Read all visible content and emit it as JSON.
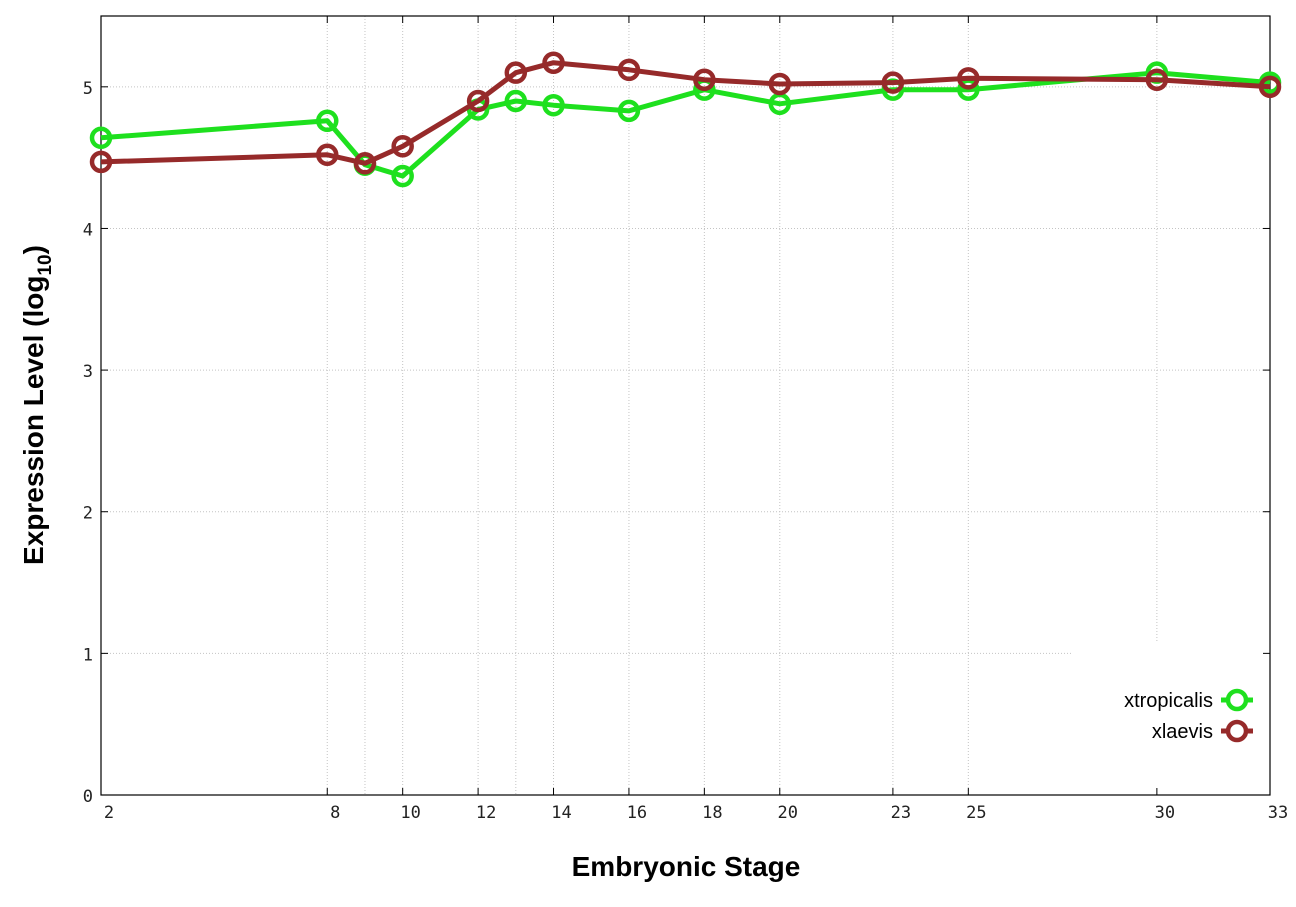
{
  "chart_data": {
    "type": "line",
    "xlabel": "Embryonic Stage",
    "ylabel": "Expression Level (log",
    "ylabel_sub": "10",
    "ylabel_close": ")",
    "xlim": [
      2,
      33
    ],
    "ylim": [
      0,
      5.5
    ],
    "x_ticks": [
      2,
      8,
      10,
      12,
      14,
      16,
      18,
      20,
      23,
      25,
      30,
      33
    ],
    "x_gridlines": [
      8,
      9,
      10,
      12,
      13,
      14,
      16,
      18,
      20,
      23,
      25,
      30
    ],
    "y_ticks": [
      0,
      1,
      2,
      3,
      4,
      5
    ],
    "grid": true,
    "legend_position": "bottom-right",
    "series": [
      {
        "name": "xtropicalis",
        "color": "#1ee01e",
        "x": [
          2,
          8,
          9,
          10,
          12,
          13,
          14,
          16,
          18,
          20,
          23,
          25,
          30,
          33
        ],
        "values": [
          4.64,
          4.76,
          4.45,
          4.37,
          4.84,
          4.9,
          4.87,
          4.83,
          4.98,
          4.88,
          4.98,
          4.98,
          5.1,
          5.03
        ]
      },
      {
        "name": "xlaevis",
        "color": "#962a2a",
        "x": [
          2,
          8,
          9,
          10,
          12,
          13,
          14,
          16,
          18,
          20,
          23,
          25,
          30,
          33
        ],
        "values": [
          4.47,
          4.52,
          4.46,
          4.58,
          4.9,
          5.1,
          5.17,
          5.12,
          5.05,
          5.02,
          5.03,
          5.06,
          5.05,
          5.0
        ]
      }
    ]
  }
}
